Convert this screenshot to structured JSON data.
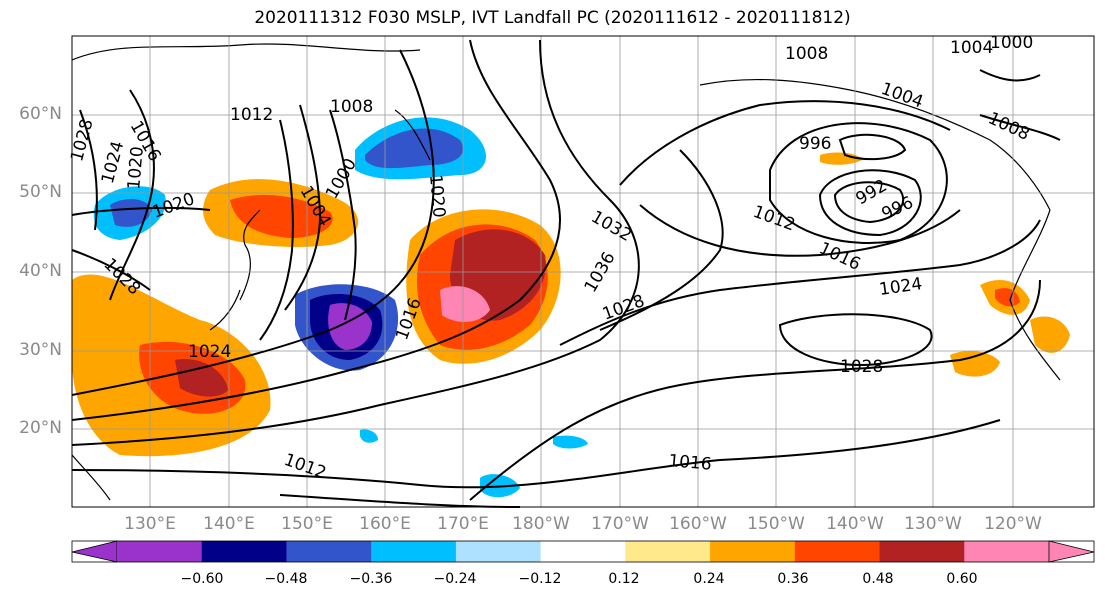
{
  "title": "2020111312 F030 MSLP, IVT Landfall PC (2020111612 - 2020111812)",
  "lat_labels": [
    "60°N",
    "50°N",
    "40°N",
    "30°N",
    "20°N"
  ],
  "lon_labels": [
    "130°E",
    "140°E",
    "150°E",
    "160°E",
    "170°E",
    "180°W",
    "170°W",
    "160°W",
    "150°W",
    "140°W",
    "130°W",
    "120°W"
  ],
  "colorbar": {
    "colors": [
      "#9933cc",
      "#000088",
      "#3355cc",
      "#00bfff",
      "#aee0ff",
      "#ffffff",
      "#ffe98a",
      "#ffa500",
      "#ff4500",
      "#b22222",
      "#ff85b5"
    ],
    "tick_labels": [
      "−0.60",
      "−0.48",
      "−0.36",
      "−0.24",
      "−0.12",
      "0.12",
      "0.24",
      "0.36",
      "0.48",
      "0.60"
    ]
  },
  "contour_labels": [
    "1008",
    "1004",
    "1000",
    "1016",
    "1012",
    "1008",
    "1004",
    "996",
    "1008",
    "1028",
    "1024",
    "1020",
    "1020",
    "1020",
    "1004",
    "1000",
    "1032",
    "1012",
    "992",
    "996",
    "1016",
    "1028",
    "1036",
    "1024",
    "1028",
    "1016",
    "1024",
    "1028",
    "1012",
    "1016"
  ]
}
